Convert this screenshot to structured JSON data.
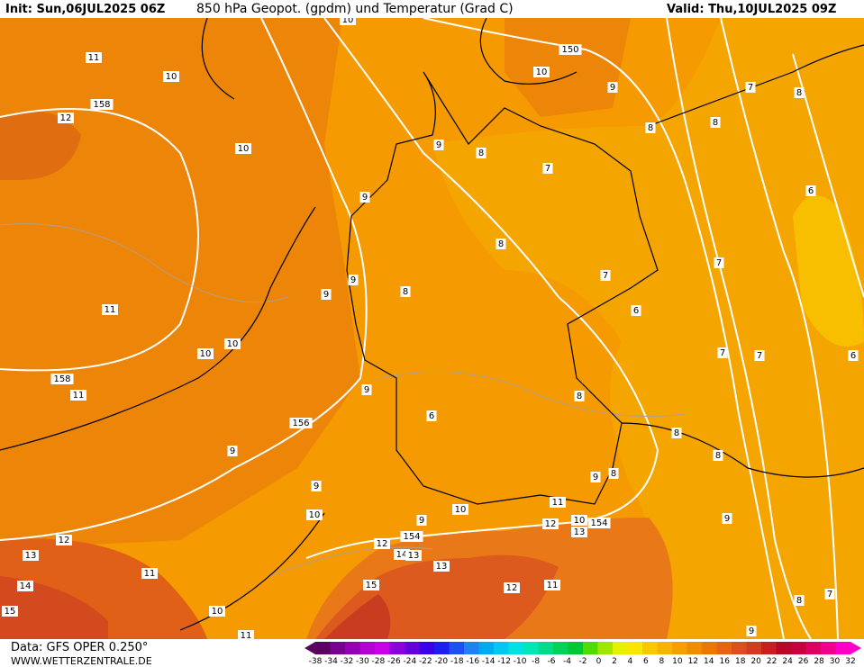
{
  "header": {
    "init": "Init: Sun,06JUL2025 06Z",
    "title": "850 hPa Geopot. (gpdm) und Temperatur (Grad C)",
    "valid": "Valid: Thu,10JUL2025 09Z"
  },
  "footer": {
    "data": "Data: GFS OPER 0.250°",
    "site": "WWW.WETTERZENTRALE.DE"
  },
  "contour_labels": [
    "10",
    "11",
    "10",
    "150",
    "10",
    "158",
    "12",
    "10",
    "9",
    "7",
    "8",
    "8",
    "8",
    "9",
    "8",
    "7",
    "9",
    "6",
    "8",
    "7",
    "7",
    "9",
    "8",
    "9",
    "6",
    "11",
    "10",
    "10",
    "7",
    "7",
    "6",
    "158",
    "11",
    "9",
    "8",
    "6",
    "156",
    "8",
    "9",
    "8",
    "9",
    "8",
    "9",
    "11",
    "10",
    "10",
    "10",
    "154",
    "12",
    "9",
    "13",
    "154",
    "12",
    "12",
    "9",
    "13",
    "14",
    "13",
    "13",
    "11",
    "15",
    "11",
    "12",
    "14",
    "8",
    "7",
    "15",
    "10",
    "11",
    "9"
  ],
  "colorbar": {
    "labels": [
      "-38",
      "-34",
      "-32",
      "-30",
      "-28",
      "-26",
      "-24",
      "-22",
      "-20",
      "-18",
      "-16",
      "-14",
      "-12",
      "-10",
      "-8",
      "-6",
      "-4",
      "-2",
      "0",
      "2",
      "4",
      "6",
      "8",
      "10",
      "12",
      "14",
      "16",
      "18",
      "20",
      "22",
      "24",
      "26",
      "28",
      "30",
      "32"
    ],
    "colors": [
      "#5a0060",
      "#780090",
      "#9600b4",
      "#b400d2",
      "#c800e6",
      "#8c00dc",
      "#6400dc",
      "#3c00e6",
      "#1e1ef0",
      "#1e50f0",
      "#1e82f0",
      "#00aaf0",
      "#00c8f0",
      "#00e1e1",
      "#00e6b4",
      "#00dc8c",
      "#00d25a",
      "#00c832",
      "#50dc00",
      "#a0e600",
      "#e6f000",
      "#fae600",
      "#fac800",
      "#f5b400",
      "#f5a000",
      "#f08c00",
      "#eb7800",
      "#e66414",
      "#dc501e",
      "#d23c1e",
      "#c81e1e",
      "#b40a28",
      "#c8003c",
      "#dc0064",
      "#f0008c",
      "#ff00c8"
    ]
  }
}
